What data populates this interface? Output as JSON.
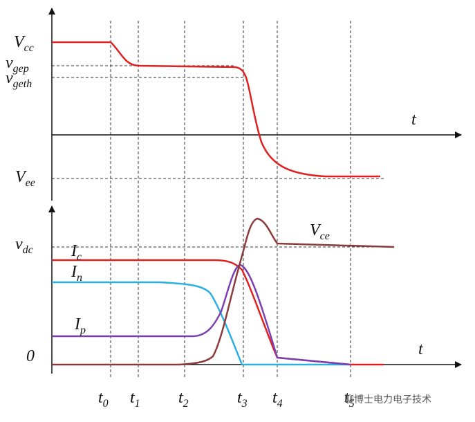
{
  "top": {
    "labels": [
      {
        "text": "V",
        "sub": "cc"
      },
      {
        "text": "v",
        "sub": "gep"
      },
      {
        "text": "v",
        "sub": "geth"
      },
      {
        "text": "V",
        "sub": "ee"
      }
    ],
    "axis": "t"
  },
  "bottom": {
    "labels": [
      {
        "text": "v",
        "sub": "dc"
      },
      {
        "text": "0",
        "sub": ""
      }
    ],
    "curves": [
      {
        "text": "I",
        "sub": "c"
      },
      {
        "text": "I",
        "sub": "n"
      },
      {
        "text": "I",
        "sub": "p"
      },
      {
        "text": "V",
        "sub": "ce"
      }
    ],
    "axis": "t"
  },
  "times": [
    {
      "text": "t",
      "sub": "0"
    },
    {
      "text": "t",
      "sub": "1"
    },
    {
      "text": "t",
      "sub": "2"
    },
    {
      "text": "t",
      "sub": "3"
    },
    {
      "text": "t",
      "sub": "4"
    },
    {
      "text": "t",
      "sub": "5"
    }
  ],
  "watermark": "聊博士电力电子技术"
}
